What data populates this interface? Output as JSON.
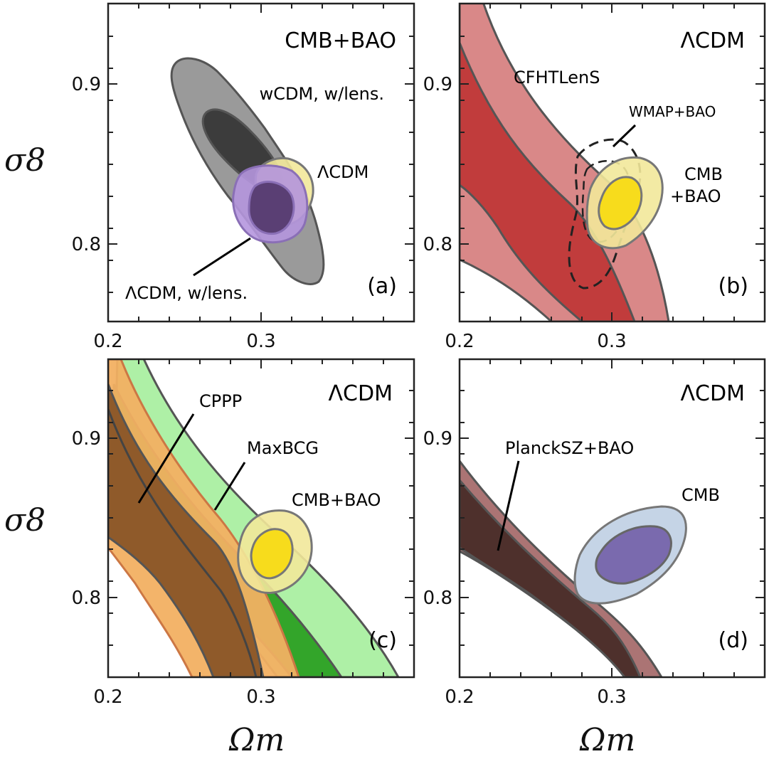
{
  "figure": {
    "y_axis_label": "σ8",
    "x_axis_label": "Ωm"
  },
  "colors": {
    "gray_outer": "#9a9a9a",
    "gray_inner": "#3c3c3c",
    "yellow_outer": "#f2e89a",
    "yellow_inner": "#f7dc1c",
    "purple_outer": "#b596de",
    "purple_inner": "#5a3f74",
    "red_outer": "#d98888",
    "red_inner": "#c13c3c",
    "green_outer": "#aef0a6",
    "green_inner": "#33a52a",
    "orange_outer": "#f2b062",
    "brown_inner": "#8f5a2a",
    "mauve_outer": "#ab7474",
    "darkbrown_inner": "#4e302c",
    "blue_outer": "#c5d4e6",
    "blue_inner": "#7a6aae",
    "edge": "#555555"
  },
  "chart_data": [
    {
      "type": "contour",
      "panel": "(a)",
      "title": "CMB+BAO",
      "xlim": [
        0.2,
        0.4
      ],
      "ylim": [
        0.75,
        0.95
      ],
      "xticks": [
        0.2,
        0.3
      ],
      "yticks": [
        0.8,
        0.9
      ],
      "annotations": [
        "wCDM, w/lens.",
        "ΛCDM",
        "ΛCDM, w/lens."
      ],
      "series": [
        {
          "label": "wCDM, w/lens.",
          "color": "gray",
          "center": [
            0.293,
            0.845
          ],
          "levels": [
            "68%",
            "95%"
          ]
        },
        {
          "label": "ΛCDM",
          "color": "yellow",
          "center": [
            0.31,
            0.825
          ],
          "levels": [
            "68%",
            "95%"
          ]
        },
        {
          "label": "ΛCDM, w/lens.",
          "color": "purple",
          "center": [
            0.301,
            0.819
          ],
          "levels": [
            "68%",
            "95%"
          ]
        }
      ]
    },
    {
      "type": "contour",
      "panel": "(b)",
      "title": "ΛCDM",
      "xlim": [
        0.2,
        0.4
      ],
      "ylim": [
        0.75,
        0.95
      ],
      "xticks": [
        0.2,
        0.3
      ],
      "yticks": [
        0.8,
        0.9
      ],
      "annotations": [
        "CFHTLenS",
        "WMAP+BAO",
        "CMB",
        "+BAO"
      ],
      "series": [
        {
          "label": "CFHTLenS",
          "color": "red",
          "shape": "band"
        },
        {
          "label": "WMAP+BAO",
          "color": "none",
          "style": "dashed",
          "center": [
            0.292,
            0.816
          ]
        },
        {
          "label": "CMB+BAO",
          "color": "yellow",
          "center": [
            0.31,
            0.825
          ],
          "levels": [
            "68%",
            "95%"
          ]
        }
      ]
    },
    {
      "type": "contour",
      "panel": "(c)",
      "title": "ΛCDM",
      "xlim": [
        0.2,
        0.4
      ],
      "ylim": [
        0.75,
        0.95
      ],
      "xticks": [
        0.2,
        0.3
      ],
      "yticks": [
        0.8,
        0.9
      ],
      "annotations": [
        "CPPP",
        "MaxBCG",
        "CMB+BAO"
      ],
      "series": [
        {
          "label": "CPPP",
          "color": "orange",
          "shape": "band"
        },
        {
          "label": "MaxBCG",
          "color": "green",
          "shape": "band"
        },
        {
          "label": "CMB+BAO",
          "color": "yellow",
          "center": [
            0.31,
            0.825
          ],
          "levels": [
            "68%",
            "95%"
          ]
        }
      ]
    },
    {
      "type": "contour",
      "panel": "(d)",
      "title": "ΛCDM",
      "xlim": [
        0.2,
        0.4
      ],
      "ylim": [
        0.75,
        0.95
      ],
      "xticks": [
        0.2,
        0.3
      ],
      "yticks": [
        0.8,
        0.9
      ],
      "annotations": [
        "PlanckSZ+BAO",
        "CMB"
      ],
      "series": [
        {
          "label": "PlanckSZ+BAO",
          "color": "mauve",
          "shape": "band"
        },
        {
          "label": "CMB",
          "color": "blue",
          "center": [
            0.314,
            0.833
          ],
          "levels": [
            "68%",
            "95%"
          ]
        }
      ]
    }
  ]
}
